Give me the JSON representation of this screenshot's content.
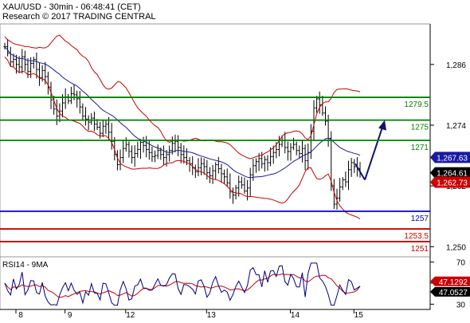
{
  "header": {
    "title": "XAU/USD - 30min - 06:48:41 (CET)",
    "copyright": "Research © 2017 TRADING CENTRAL"
  },
  "colors": {
    "price_bars": "#000000",
    "bollinger": "#cc0000",
    "moving_average": "#1a1aa0",
    "resistance": "#008000",
    "support_blue": "#0000cc",
    "support_red": "#cc0000",
    "forecast_arrow": "#12126e",
    "rsi_line": "#000080",
    "rsi_ma": "#cc0000",
    "tag_dark": "#000000",
    "tag_red": "#cc0000",
    "tag_blue": "#1a1aa0"
  },
  "chart_data": [
    {
      "type": "candlestick",
      "title": "XAU/USD - 30min - 06:48:41 (CET)",
      "x_tick_labels": [
        "8",
        "9",
        "12",
        "13",
        "14",
        "15"
      ],
      "y_tick_labels": [
        "1,286",
        "1,274",
        "1,262",
        "1,250"
      ],
      "ylim": [
        1248,
        1294
      ],
      "grid": false,
      "price_close": [
        1289.5,
        1288.2,
        1286.5,
        1287.0,
        1286.0,
        1285.5,
        1287.5,
        1286.0,
        1284.6,
        1286.2,
        1287.0,
        1285.0,
        1283.4,
        1284.8,
        1283.6,
        1281.5,
        1279.0,
        1277.2,
        1275.8,
        1276.8,
        1278.4,
        1279.6,
        1278.8,
        1280.2,
        1280.0,
        1279.2,
        1277.6,
        1275.8,
        1275.2,
        1274.6,
        1275.4,
        1274.2,
        1273.6,
        1272.4,
        1273.8,
        1274.2,
        1272.6,
        1270.8,
        1268.2,
        1266.2,
        1267.6,
        1269.4,
        1270.2,
        1268.8,
        1267.6,
        1268.4,
        1269.2,
        1270.6,
        1270.0,
        1269.2,
        1268.6,
        1267.8,
        1268.0,
        1269.0,
        1268.2,
        1267.6,
        1268.2,
        1269.0,
        1270.4,
        1270.8,
        1269.6,
        1268.2,
        1267.6,
        1267.0,
        1266.4,
        1265.6,
        1264.8,
        1265.6,
        1266.4,
        1265.8,
        1264.6,
        1264.0,
        1265.0,
        1266.2,
        1265.4,
        1264.4,
        1263.8,
        1262.6,
        1260.8,
        1260.2,
        1261.6,
        1262.8,
        1262.2,
        1261.0,
        1261.6,
        1264.2,
        1266.0,
        1266.8,
        1267.4,
        1266.4,
        1267.2,
        1266.6,
        1267.8,
        1268.6,
        1269.2,
        1270.2,
        1271.0,
        1269.6,
        1268.8,
        1269.6,
        1270.2,
        1269.0,
        1268.4,
        1269.4,
        1267.0,
        1268.6,
        1272.8,
        1277.4,
        1279.2,
        1278.0,
        1276.4,
        1274.8,
        1271.4,
        1262.0,
        1258.4,
        1259.6,
        1261.8,
        1263.2,
        1262.8,
        1265.2,
        1266.6,
        1265.8,
        1265.4,
        1264.6
      ],
      "last_price": 1264.61,
      "moving_average_last": 1267.63,
      "bollinger_lower_last": 1262.73,
      "last_price_label": "1,264.61",
      "moving_average_label": "1,267.63",
      "bollinger_lower_label": "1,262.73",
      "levels": [
        {
          "value": 1279.5,
          "label": "1279.5",
          "color": "#008000"
        },
        {
          "value": 1275,
          "label": "1275",
          "color": "#008000"
        },
        {
          "value": 1271,
          "label": "1271",
          "color": "#008000"
        },
        {
          "value": 1257,
          "label": "1257",
          "color": "#0000cc"
        },
        {
          "value": 1253.5,
          "label": "1253.5",
          "color": "#cc0000"
        },
        {
          "value": 1251,
          "label": "1251",
          "color": "#cc0000"
        }
      ],
      "forecast": {
        "from": 1263.2,
        "to": 1275.0
      }
    },
    {
      "type": "line",
      "title": "RSI14 - 9MA",
      "y_tick_labels": [
        "70",
        "50",
        "30"
      ],
      "ylim": [
        25,
        75
      ],
      "rsi_last_label": "47.1292",
      "ma_last_label": "47.0527",
      "rsi_last": 47.1292,
      "ma_last": 47.0527
    }
  ]
}
